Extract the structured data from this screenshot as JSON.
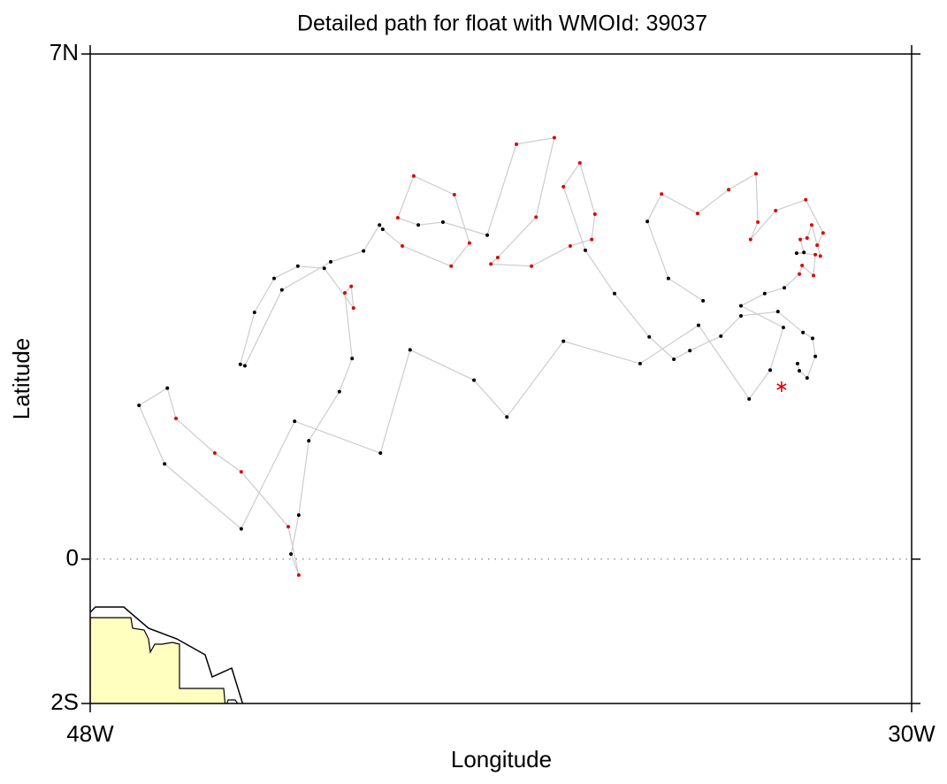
{
  "chart_data": {
    "type": "line",
    "title": "Detailed path for float with WMOId: 39037",
    "x_label": "Longitude",
    "y_label": "Latitude",
    "xlim": [
      -48,
      -30
    ],
    "ylim": [
      -2,
      7
    ],
    "xticks": [
      {
        "value": -48,
        "label": "48W"
      },
      {
        "value": -30,
        "label": "30W"
      }
    ],
    "yticks": [
      {
        "value": -2,
        "label": "2S"
      },
      0,
      {
        "value": 7,
        "label": "7N"
      }
    ],
    "zero_line": true,
    "x": [
      -34.57,
      -35.33,
      -35.79,
      -35.48,
      -34.69,
      -34.01,
      -33.41,
      -33.37,
      -33.53,
      -32.98,
      -32.32,
      -31.94,
      -32.07,
      -32.0,
      -32.19,
      -32.29,
      -32.44,
      -32.36,
      -32.52,
      -32.11,
      -32.15,
      -32.4,
      -32.46,
      -32.79,
      -33.22,
      -33.74,
      -32.81,
      -33.1,
      -33.56,
      -34.67,
      -35.95,
      -37.63,
      -38.87,
      -39.59,
      -40.99,
      -41.64,
      -43.52,
      -44.69,
      -46.37,
      -46.93,
      -46.31,
      -46.12,
      -45.27,
      -44.69,
      -43.66,
      -43.43,
      -43.6,
      -43.43,
      -43.21,
      -42.54,
      -42.26,
      -42.42,
      -42.28,
      -42.23,
      -42.87,
      -43.45,
      -43.97,
      -44.4,
      -44.71,
      -44.61,
      -43.8,
      -42.73,
      -42.01,
      -41.66,
      -41.59,
      -41.16,
      -40.09,
      -39.69,
      -40.02,
      -40.91,
      -41.26,
      -40.81,
      -40.27,
      -39.3,
      -38.66,
      -37.83,
      -38.23,
      -39.07,
      -39.22,
      -38.33,
      -37.48,
      -37.01,
      -36.94,
      -37.27,
      -37.63,
      -37.15,
      -36.51,
      -35.75,
      -35.21,
      -34.86,
      -34.18,
      -33.74,
      -32.93,
      -32.38,
      -32.17,
      -32.11,
      -32.29,
      -32.46,
      -32.5
    ],
    "series": [
      {
        "color": "#cccccc",
        "values": [
          3.58,
          3.89,
          4.68,
          5.06,
          4.79,
          5.12,
          5.34,
          4.67,
          4.43,
          4.83,
          4.98,
          4.52,
          4.35,
          4.2,
          4.63,
          4.45,
          4.43,
          4.25,
          4.24,
          4.22,
          3.93,
          4.07,
          3.95,
          3.76,
          3.68,
          3.51,
          3.21,
          2.62,
          2.22,
          3.24,
          2.71,
          3.02,
          1.97,
          2.48,
          2.9,
          1.47,
          1.91,
          0.42,
          1.32,
          2.13,
          2.37,
          1.95,
          1.47,
          1.21,
          0.45,
          -0.22,
          0.07,
          0.61,
          1.64,
          2.32,
          2.78,
          3.69,
          3.78,
          3.48,
          4.03,
          4.06,
          3.89,
          3.42,
          2.7,
          2.68,
          3.73,
          4.12,
          4.27,
          4.63,
          4.57,
          4.34,
          4.06,
          4.38,
          5.05,
          5.31,
          4.73,
          4.63,
          4.67,
          4.49,
          5.75,
          5.84,
          4.74,
          4.18,
          4.09,
          4.06,
          4.34,
          4.43,
          4.78,
          5.49,
          5.16,
          4.28,
          3.68,
          3.08,
          2.77,
          2.89,
          3.09,
          3.37,
          3.43,
          3.14,
          3.06,
          2.81,
          2.51,
          2.61,
          2.71
        ],
        "point_colors": [
          "#000000",
          "#000000",
          "#000000",
          "#e00000",
          "#e00000",
          "#e00000",
          "#e00000",
          "#e00000",
          "#e00000",
          "#e00000",
          "#e00000",
          "#e00000",
          "#e00000",
          "#e00000",
          "#e00000",
          "#e00000",
          "#e00000",
          "#000000",
          "#000000",
          "#e00000",
          "#e00000",
          "#e00000",
          "#e00000",
          "#000000",
          "#000000",
          "#000000",
          "#000000",
          "#000000",
          "#000000",
          "#000000",
          "#000000",
          "#000000",
          "#000000",
          "#000000",
          "#000000",
          "#000000",
          "#000000",
          "#000000",
          "#000000",
          "#000000",
          "#000000",
          "#e00000",
          "#e00000",
          "#e00000",
          "#e00000",
          "#e00000",
          "#000000",
          "#000000",
          "#000000",
          "#000000",
          "#000000",
          "#e00000",
          "#e00000",
          "#e00000",
          "#000000",
          "#000000",
          "#000000",
          "#000000",
          "#000000",
          "#000000",
          "#000000",
          "#000000",
          "#000000",
          "#000000",
          "#000000",
          "#e00000",
          "#e00000",
          "#e00000",
          "#e00000",
          "#e00000",
          "#e00000",
          "#000000",
          "#000000",
          "#000000",
          "#e00000",
          "#e00000",
          "#e00000",
          "#e00000",
          "#e00000",
          "#e00000",
          "#e00000",
          "#e00000",
          "#e00000",
          "#e00000",
          "#e00000",
          "#000000",
          "#000000",
          "#000000",
          "#000000",
          "#000000",
          "#000000",
          "#000000",
          "#000000",
          "#000000",
          "#000000",
          "#000000",
          "#000000",
          "#000000",
          "#000000"
        ]
      }
    ],
    "end_point": {
      "x": -32.85,
      "y": 2.39,
      "color": "#e00000"
    }
  }
}
